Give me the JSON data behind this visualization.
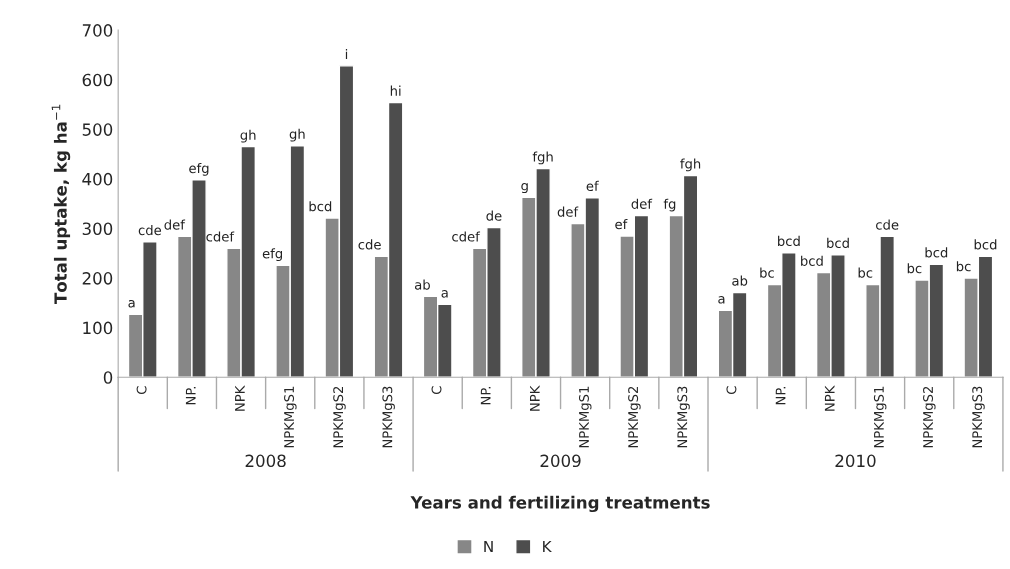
{
  "chart_data": {
    "type": "bar",
    "xlabel": "Years and fertilizing treatments",
    "ylabel": "Total uptake, kg ha$^{−1}$",
    "categories": [
      "C",
      "NP.",
      "NPK",
      "NPKMgS1",
      "NPKMgS2",
      "NPKMgS3",
      "C",
      "NP.",
      "NPK",
      "NPKMgS1",
      "NPKMgS2",
      "NPKMgS3",
      "C",
      "NP.",
      "NPK",
      "NPKMgS1",
      "NPKMgS2",
      "NPKMgS3"
    ],
    "series": [
      {
        "name": "N",
        "color": "#878787",
        "values": [
          127,
          284,
          260,
          226,
          321,
          244,
          163,
          260,
          363,
          310,
          285,
          326,
          135,
          187,
          211,
          187,
          196,
          200
        ],
        "value_labels": [
          "a",
          "def",
          "cdef",
          "efg",
          "bcd",
          "cde",
          "ab",
          "cdef",
          "g",
          "def",
          "ef",
          "fg",
          "a",
          "bc",
          "bcd",
          "bc",
          "bc",
          "bc"
        ]
      },
      {
        "name": "K",
        "color": "#4d4d4d",
        "values": [
          273,
          398,
          465,
          467,
          628,
          554,
          147,
          302,
          421,
          362,
          326,
          407,
          171,
          251,
          247,
          284,
          228,
          244
        ],
        "value_labels": [
          "cde",
          "efg",
          "gh",
          "gh",
          "i",
          "hi",
          "a",
          "de",
          "fgh",
          "ef",
          "def",
          "fgh",
          "ab",
          "bcd",
          "bcd",
          "cde",
          "bcd",
          "bcd"
        ]
      }
    ],
    "annotations": [
      "2008",
      "2009",
      "2010"
    ],
    "ylim": [
      0,
      700
    ],
    "yticks": [
      0,
      100,
      200,
      300,
      400,
      500,
      600,
      700
    ],
    "grid": false,
    "legend": "bottom"
  }
}
